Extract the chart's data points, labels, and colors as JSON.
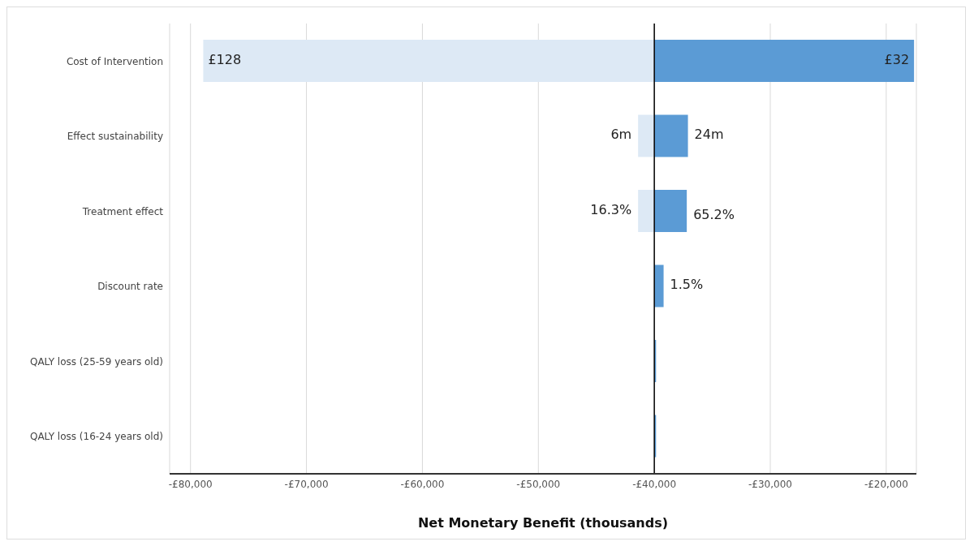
{
  "chart_data": {
    "type": "bar",
    "orientation": "horizontal",
    "xlabel": "Net Monetary Benefit (thousands)",
    "categories": [
      "Cost of Intervention",
      "Effect sustainability",
      "Treatment effect",
      "Discount rate",
      "QALY loss (25-59 years old)",
      "QALY loss (16-24 years old)"
    ],
    "series": [
      {
        "color": "#dde9f5",
        "base": [
          -78900,
          -41400,
          -41400,
          null,
          null,
          null
        ],
        "values": [
          38900,
          1400,
          1400,
          null,
          null,
          null
        ]
      },
      {
        "color": "#5b9bd5",
        "base": [
          -40000,
          -40000,
          -40000,
          -40000,
          -40000,
          -40000
        ],
        "values": [
          22400,
          2900,
          2800,
          800,
          150,
          150
        ]
      }
    ],
    "annotations": [
      {
        "text": "£128",
        "x": -78900,
        "y": "Cost of Intervention"
      },
      {
        "text": "£32",
        "x": -17600,
        "y": "Cost of Intervention"
      },
      {
        "text": "6m",
        "x": -41400,
        "y": "Effect sustainability"
      },
      {
        "text": "24m",
        "x": -37100,
        "y": "Effect sustainability"
      },
      {
        "text": "16.3%",
        "x": -41400,
        "y": "Treatment effect"
      },
      {
        "text": "65.2%",
        "x": -37200,
        "y": "Treatment effect"
      },
      {
        "text": "1.5%",
        "x": -39200,
        "y": "Discount rate"
      }
    ],
    "xlim": [
      -81800,
      -17400
    ],
    "xticks": [
      {
        "value": -80000,
        "label": "-£80,000"
      },
      {
        "value": -70000,
        "label": "-£70,000"
      },
      {
        "value": -60000,
        "label": "-£60,000"
      },
      {
        "value": -50000,
        "label": "-£50,000"
      },
      {
        "value": -40000,
        "label": "-£40,000"
      },
      {
        "value": -30000,
        "label": "-£30,000"
      },
      {
        "value": -20000,
        "label": "-£20,000"
      }
    ],
    "ref_lines": [
      {
        "axis": "x",
        "value": -40000,
        "color": "#000000"
      }
    ],
    "grid": "x",
    "legend": false
  }
}
